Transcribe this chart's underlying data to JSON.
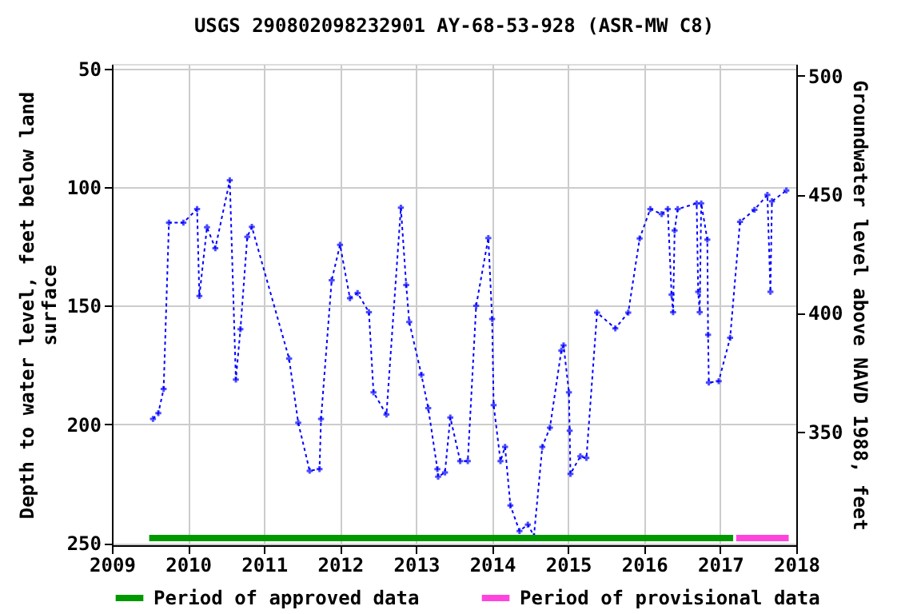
{
  "chart_data": {
    "type": "line",
    "title": "USGS 290802098232901 AY-68-53-928 (ASR-MW C8)",
    "xlabel": null,
    "ylabel": "Depth to water level, feet below land surface",
    "y2label": "Groundwater level above NAVD 1988, feet",
    "series": [
      {
        "color": "#0000ff",
        "marker": "cross",
        "line_style": "dotted",
        "x": [
          2009.54,
          2009.61,
          2009.68,
          2009.75,
          2009.94,
          2010.12,
          2010.15,
          2010.25,
          2010.36,
          2010.55,
          2010.63,
          2010.69,
          2010.78,
          2010.84,
          2011.33,
          2011.45,
          2011.6,
          2011.73,
          2011.75,
          2011.89,
          2012.0,
          2012.13,
          2012.23,
          2012.38,
          2012.44,
          2012.61,
          2012.8,
          2012.87,
          2012.91,
          2013.07,
          2013.16,
          2013.28,
          2013.29,
          2013.38,
          2013.45,
          2013.58,
          2013.68,
          2013.79,
          2013.95,
          2014.0,
          2014.02,
          2014.11,
          2014.17,
          2014.24,
          2014.36,
          2014.47,
          2014.55,
          2014.66,
          2014.76,
          2014.91,
          2014.94,
          2015.01,
          2015.02,
          2015.03,
          2015.16,
          2015.24,
          2015.38,
          2015.62,
          2015.79,
          2015.94,
          2016.08,
          2016.23,
          2016.31,
          2016.36,
          2016.38,
          2016.4,
          2016.44,
          2016.69,
          2016.71,
          2016.73,
          2016.75,
          2016.83,
          2016.84,
          2016.85,
          2016.98,
          2017.13,
          2017.26,
          2017.45,
          2017.62,
          2017.66,
          2017.68,
          2017.87
        ],
        "values": [
          197.7,
          195.3,
          185.1,
          114.9,
          114.9,
          109.2,
          145.9,
          116.9,
          125.7,
          97.1,
          181.1,
          159.9,
          120.9,
          116.7,
          172.3,
          199.3,
          219.6,
          218.9,
          197.7,
          139.2,
          124.3,
          146.8,
          144.6,
          152.7,
          186.5,
          195.9,
          108.6,
          141.2,
          156.8,
          179.1,
          193.2,
          218.9,
          222.1,
          220.3,
          197.1,
          215.5,
          215.5,
          150.0,
          121.4,
          155.6,
          191.9,
          215.5,
          209.5,
          234.2,
          245.0,
          242.3,
          247.1,
          209.5,
          201.4,
          168.9,
          166.7,
          186.5,
          202.7,
          220.9,
          213.5,
          214.2,
          152.9,
          159.5,
          152.9,
          121.6,
          109.2,
          111.3,
          109.2,
          145.3,
          152.7,
          118.2,
          109.2,
          106.8,
          144.1,
          152.7,
          106.8,
          122.1,
          162.2,
          182.4,
          181.8,
          163.5,
          114.6,
          109.5,
          103.2,
          144.1,
          105.9,
          101.4
        ]
      },
      {
        "name": "Period of approved data",
        "color": "#009900",
        "line_style": "solid",
        "x": [
          2009.49,
          2017.17
        ],
        "values": [
          248,
          248
        ]
      },
      {
        "name": "Period of provisional data",
        "color": "#ff44dd",
        "line_style": "solid",
        "x": [
          2017.21,
          2017.9
        ],
        "values": [
          248,
          248
        ]
      }
    ],
    "xlim": [
      2009,
      2018
    ],
    "xticks": [
      2009,
      2010,
      2011,
      2012,
      2013,
      2014,
      2015,
      2016,
      2017,
      2018
    ],
    "ylim": [
      251,
      48
    ],
    "yticks": [
      50,
      100,
      150,
      200,
      250
    ],
    "y2lim": [
      302,
      505
    ],
    "y2ticks": [
      350,
      400,
      450,
      500
    ],
    "grid": true,
    "legend": "bottom"
  }
}
